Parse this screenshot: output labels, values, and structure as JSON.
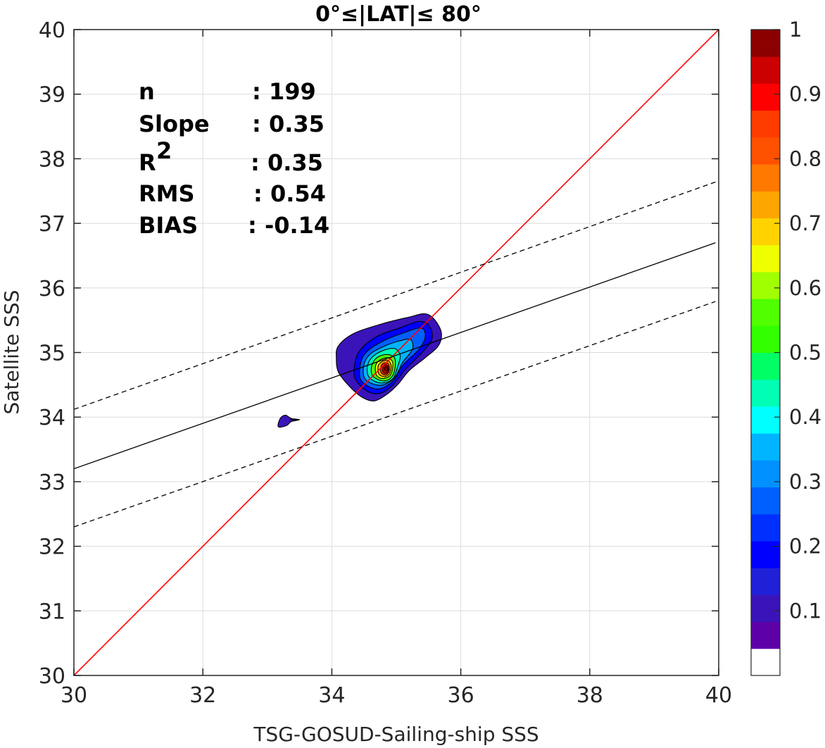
{
  "chart_data": {
    "type": "contour",
    "title": "0°≤|LAT|≤ 80°",
    "xlabel": "TSG-GOSUD-Sailing-ship SSS",
    "ylabel": "Satellite SSS",
    "xlim": [
      30,
      40
    ],
    "ylim": [
      30,
      40
    ],
    "xticks": [
      "30",
      "32",
      "34",
      "36",
      "38",
      "40"
    ],
    "yticks": [
      "30",
      "31",
      "32",
      "33",
      "34",
      "35",
      "36",
      "37",
      "38",
      "39",
      "40"
    ],
    "grid": true,
    "stats": [
      {
        "name": "n",
        "value": ": 199"
      },
      {
        "name": "Slope",
        "value": ": 0.35"
      },
      {
        "name": "R",
        "sup": "2",
        "value": ": 0.35"
      },
      {
        "name": "RMS",
        "value": ": 0.54"
      },
      {
        "name": "BIAS",
        "value": ": -0.14"
      }
    ],
    "lines": [
      {
        "name": "one-to-one",
        "style": "solid",
        "color": "#ff0000",
        "points": [
          [
            30,
            30
          ],
          [
            40,
            40
          ]
        ]
      },
      {
        "name": "regression",
        "style": "solid",
        "color": "#000000",
        "points": [
          [
            30,
            33.2
          ],
          [
            39.95,
            36.7
          ]
        ]
      },
      {
        "name": "upper-bound",
        "style": "dashed",
        "color": "#000000",
        "points": [
          [
            30,
            34.12
          ],
          [
            39.95,
            37.64
          ]
        ]
      },
      {
        "name": "lower-bound",
        "style": "dashed",
        "color": "#000000",
        "points": [
          [
            30,
            32.3
          ],
          [
            39.95,
            35.79
          ]
        ]
      }
    ],
    "density_peak": {
      "x": 34.85,
      "y": 34.76
    },
    "contour_levels": [
      {
        "level": 0.05,
        "color": "#3a14b8",
        "points": [
          [
            34.1,
            34.7
          ],
          [
            34.07,
            34.9
          ],
          [
            34.1,
            35.1
          ],
          [
            34.35,
            35.3
          ],
          [
            34.8,
            35.45
          ],
          [
            35.2,
            35.55
          ],
          [
            35.45,
            35.6
          ],
          [
            35.6,
            35.5
          ],
          [
            35.7,
            35.3
          ],
          [
            35.65,
            35.1
          ],
          [
            35.45,
            34.92
          ],
          [
            35.2,
            34.72
          ],
          [
            35.02,
            34.5
          ],
          [
            34.85,
            34.35
          ],
          [
            34.65,
            34.25
          ],
          [
            34.45,
            34.32
          ],
          [
            34.25,
            34.5
          ]
        ]
      },
      {
        "level": 0.05,
        "color": "#3a14b8",
        "points": [
          [
            33.17,
            33.85
          ],
          [
            33.2,
            33.98
          ],
          [
            33.28,
            34.03
          ],
          [
            33.37,
            33.98
          ],
          [
            33.5,
            33.96
          ],
          [
            33.37,
            33.93
          ],
          [
            33.3,
            33.87
          ]
        ]
      },
      {
        "level": 0.15,
        "color": "#0000ff",
        "points": [
          [
            34.36,
            34.6
          ],
          [
            34.36,
            34.85
          ],
          [
            34.45,
            35.05
          ],
          [
            34.7,
            35.25
          ],
          [
            35.05,
            35.38
          ],
          [
            35.35,
            35.48
          ],
          [
            35.52,
            35.4
          ],
          [
            35.55,
            35.2
          ],
          [
            35.4,
            35.0
          ],
          [
            35.15,
            34.75
          ],
          [
            34.95,
            34.5
          ],
          [
            34.75,
            34.37
          ],
          [
            34.55,
            34.4
          ]
        ]
      },
      {
        "level": 0.25,
        "color": "#0060ff",
        "points": [
          [
            34.44,
            34.6
          ],
          [
            34.45,
            34.85
          ],
          [
            34.55,
            35.02
          ],
          [
            34.8,
            35.18
          ],
          [
            35.1,
            35.3
          ],
          [
            35.38,
            35.38
          ],
          [
            35.45,
            35.25
          ],
          [
            35.35,
            35.05
          ],
          [
            35.1,
            34.8
          ],
          [
            34.95,
            34.56
          ],
          [
            34.75,
            34.44
          ],
          [
            34.58,
            34.47
          ]
        ]
      },
      {
        "level": 0.35,
        "color": "#00b4ff",
        "points": [
          [
            34.5,
            34.62
          ],
          [
            34.5,
            34.82
          ],
          [
            34.6,
            34.98
          ],
          [
            34.82,
            35.1
          ],
          [
            35.05,
            35.18
          ],
          [
            35.22,
            35.2
          ],
          [
            35.25,
            35.05
          ],
          [
            35.1,
            34.85
          ],
          [
            34.98,
            34.62
          ],
          [
            34.8,
            34.5
          ],
          [
            34.62,
            34.52
          ]
        ]
      },
      {
        "level": 0.45,
        "color": "#00ffb4",
        "points": [
          [
            34.56,
            34.65
          ],
          [
            34.56,
            34.82
          ],
          [
            34.65,
            34.95
          ],
          [
            34.82,
            35.04
          ],
          [
            34.98,
            35.06
          ],
          [
            35.06,
            34.95
          ],
          [
            35.02,
            34.78
          ],
          [
            34.95,
            34.6
          ],
          [
            34.8,
            34.53
          ],
          [
            34.65,
            34.56
          ]
        ]
      },
      {
        "level": 0.55,
        "color": "#50ff00",
        "points": [
          [
            34.62,
            34.66
          ],
          [
            34.62,
            34.8
          ],
          [
            34.7,
            34.92
          ],
          [
            34.85,
            34.97
          ],
          [
            34.97,
            34.92
          ],
          [
            34.98,
            34.76
          ],
          [
            34.93,
            34.62
          ],
          [
            34.82,
            34.56
          ],
          [
            34.7,
            34.59
          ]
        ]
      },
      {
        "level": 0.65,
        "color": "#f0ff00",
        "points": [
          [
            34.68,
            34.68
          ],
          [
            34.68,
            34.8
          ],
          [
            34.74,
            34.88
          ],
          [
            34.86,
            34.92
          ],
          [
            34.94,
            34.86
          ],
          [
            34.94,
            34.74
          ],
          [
            34.9,
            34.64
          ],
          [
            34.8,
            34.6
          ],
          [
            34.72,
            34.62
          ]
        ]
      },
      {
        "level": 0.75,
        "color": "#ffa500",
        "points": [
          [
            34.72,
            34.69
          ],
          [
            34.72,
            34.8
          ],
          [
            34.78,
            34.86
          ],
          [
            34.87,
            34.88
          ],
          [
            34.92,
            34.8
          ],
          [
            34.9,
            34.68
          ],
          [
            34.84,
            34.63
          ],
          [
            34.76,
            34.64
          ]
        ]
      },
      {
        "level": 0.85,
        "color": "#ff3c00",
        "points": [
          [
            34.76,
            34.7
          ],
          [
            34.77,
            34.8
          ],
          [
            34.82,
            34.84
          ],
          [
            34.88,
            34.82
          ],
          [
            34.89,
            34.72
          ],
          [
            34.85,
            34.66
          ],
          [
            34.8,
            34.66
          ]
        ]
      },
      {
        "level": 0.95,
        "color": "#cc0000",
        "points": [
          [
            34.79,
            34.71
          ],
          [
            34.8,
            34.79
          ],
          [
            34.85,
            34.81
          ],
          [
            34.88,
            34.76
          ],
          [
            34.86,
            34.69
          ],
          [
            34.82,
            34.68
          ]
        ]
      },
      {
        "level": 1.0,
        "color": "#8b0000",
        "points": [
          [
            34.82,
            34.73
          ],
          [
            34.83,
            34.78
          ],
          [
            34.86,
            34.77
          ],
          [
            34.86,
            34.72
          ]
        ]
      }
    ],
    "colorbar": {
      "ticks": [
        "0.1",
        "0.2",
        "0.3",
        "0.4",
        "0.5",
        "0.6",
        "0.7",
        "0.8",
        "0.9",
        "1"
      ],
      "tick_values": [
        0.1,
        0.2,
        0.3,
        0.4,
        0.5,
        0.6,
        0.7,
        0.8,
        0.9,
        1.0
      ],
      "range": [
        0,
        1
      ],
      "colors": [
        "#ffffff",
        "#5e00a8",
        "#3a14b8",
        "#2020d8",
        "#0000ff",
        "#0030ff",
        "#0060ff",
        "#0090ff",
        "#00b4ff",
        "#00ffff",
        "#00ffb4",
        "#00ff64",
        "#32ff00",
        "#50ff00",
        "#a0ff00",
        "#f0ff00",
        "#ffd200",
        "#ffa500",
        "#ff7800",
        "#ff5000",
        "#ff3c00",
        "#ff0000",
        "#cc0000",
        "#8b0000"
      ]
    }
  }
}
